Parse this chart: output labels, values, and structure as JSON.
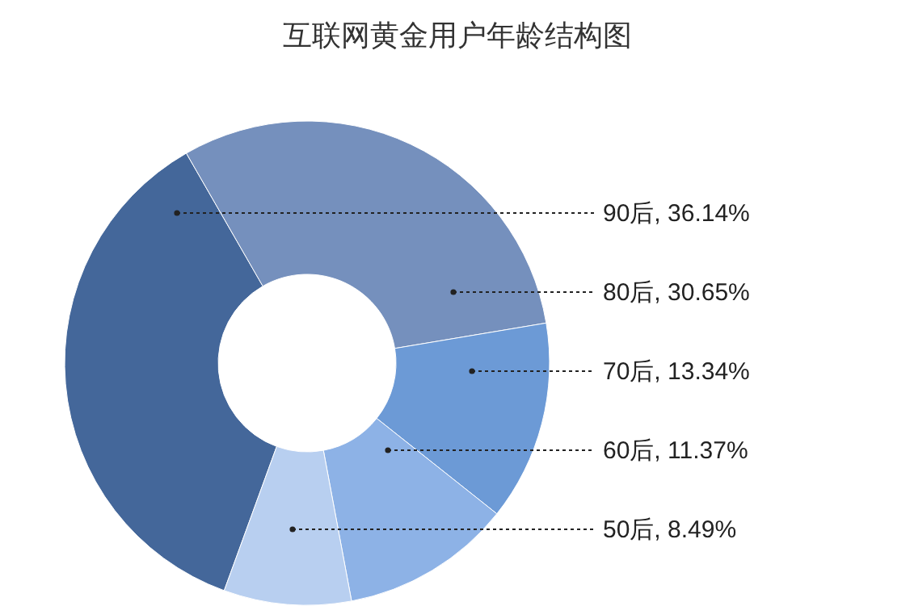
{
  "chart_data": {
    "type": "donut",
    "title": "互联网黄金用户年龄结构图",
    "categories": [
      "90后",
      "80后",
      "70后",
      "60后",
      "50后"
    ],
    "values": [
      36.14,
      30.65,
      13.34,
      11.37,
      8.49
    ],
    "value_labels": [
      "36.14%",
      "30.65%",
      "13.34%",
      "11.37%",
      "8.49%"
    ],
    "colors": [
      "#44679a",
      "#7590bd",
      "#6c9ad6",
      "#8db2e6",
      "#b8cff0"
    ]
  }
}
